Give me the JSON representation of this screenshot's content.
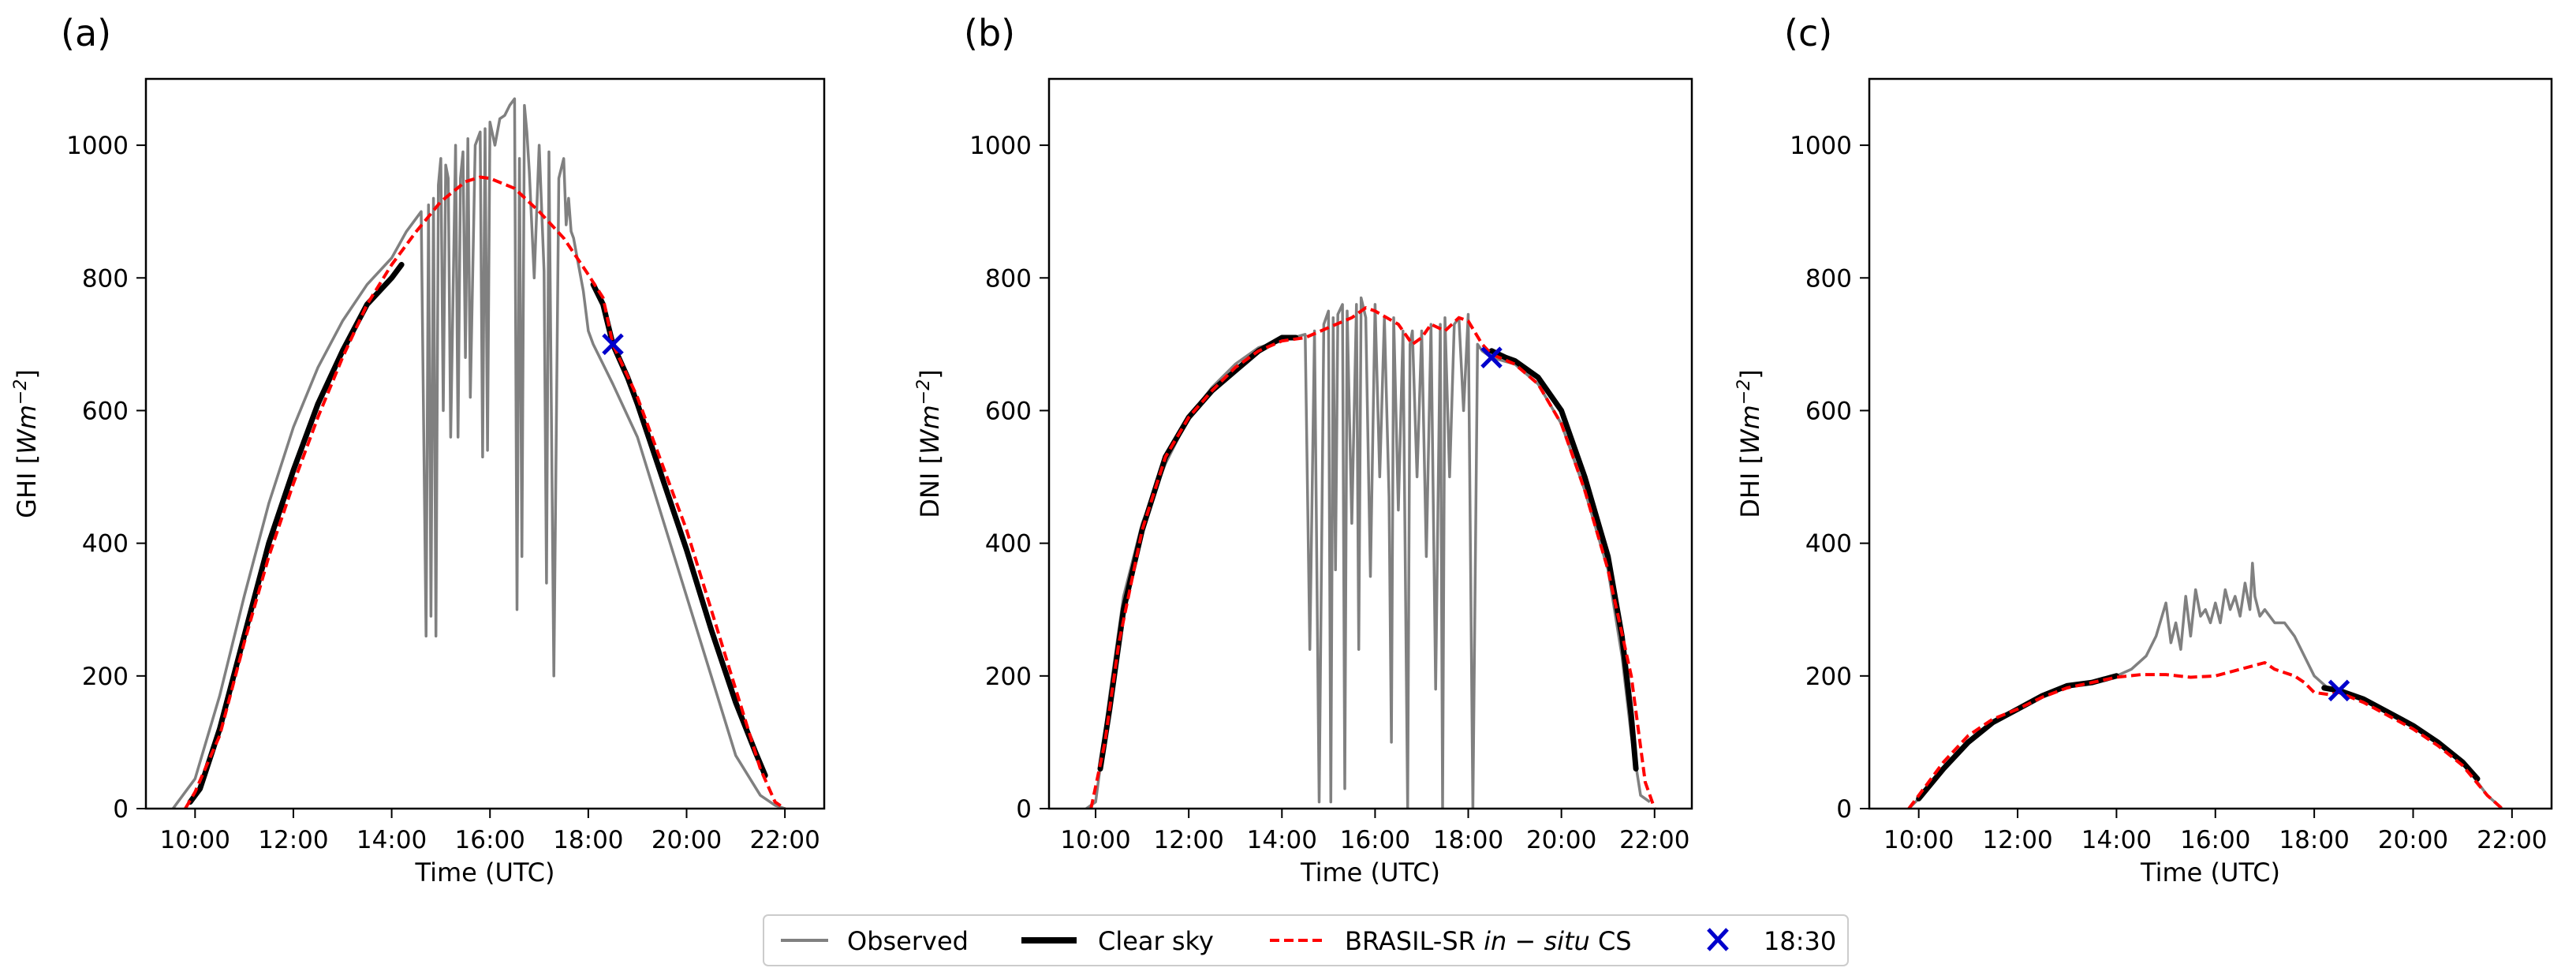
{
  "figure": {
    "legend": {
      "items": [
        {
          "label": "Observed",
          "color": "#808080",
          "style": "line"
        },
        {
          "label": "Clear sky",
          "color": "#000000",
          "style": "thick-line"
        },
        {
          "label_main": "BRASIL-SR ",
          "label_italic": "in − situ",
          "label_tail": " CS",
          "color": "#ff0000",
          "style": "dashed"
        },
        {
          "label": "18:30",
          "color": "#0000cc",
          "style": "marker-x"
        }
      ]
    }
  },
  "chart_data": [
    {
      "panel_label": "(a)",
      "type": "line",
      "ylabel_main": "GHI [",
      "ylabel_unit": "Wm",
      "ylabel_sup": "−2",
      "ylabel_end": "]",
      "xlabel": "Time (UTC)",
      "xlim": [
        9.0,
        22.8
      ],
      "ylim": [
        0,
        1100
      ],
      "xticks": [
        10,
        12,
        14,
        16,
        18,
        20,
        22
      ],
      "xtick_labels": [
        "10:00",
        "12:00",
        "14:00",
        "16:00",
        "18:00",
        "20:00",
        "22:00"
      ],
      "yticks": [
        0,
        200,
        400,
        600,
        800,
        1000
      ],
      "ytick_labels": [
        "0",
        "200",
        "400",
        "600",
        "800",
        "1000"
      ],
      "series": [
        {
          "name": "Observed",
          "color": "#808080",
          "x": [
            9.55,
            10.0,
            10.5,
            11.0,
            11.5,
            12.0,
            12.5,
            13.0,
            13.5,
            14.0,
            14.3,
            14.6,
            14.7,
            14.75,
            14.8,
            14.85,
            14.9,
            14.95,
            15.0,
            15.05,
            15.1,
            15.15,
            15.2,
            15.3,
            15.35,
            15.4,
            15.45,
            15.5,
            15.55,
            15.6,
            15.7,
            15.8,
            15.85,
            15.9,
            15.95,
            16.0,
            16.1,
            16.2,
            16.3,
            16.4,
            16.5,
            16.55,
            16.6,
            16.65,
            16.7,
            16.75,
            16.8,
            16.9,
            17.0,
            17.1,
            17.15,
            17.2,
            17.3,
            17.4,
            17.5,
            17.55,
            17.6,
            17.65,
            17.7,
            17.8,
            17.9,
            18.0,
            18.1,
            18.3,
            18.5,
            19.0,
            19.5,
            20.0,
            20.5,
            21.0,
            21.5,
            21.8,
            22.0
          ],
          "y": [
            0,
            45,
            170,
            320,
            460,
            575,
            665,
            735,
            790,
            830,
            870,
            900,
            260,
            910,
            290,
            920,
            260,
            940,
            980,
            600,
            970,
            950,
            560,
            1000,
            560,
            950,
            990,
            680,
            1010,
            620,
            1000,
            1020,
            530,
            1025,
            540,
            1035,
            1000,
            1040,
            1045,
            1060,
            1070,
            300,
            980,
            380,
            1060,
            1020,
            960,
            800,
            1000,
            810,
            340,
            990,
            200,
            950,
            980,
            880,
            920,
            870,
            860,
            820,
            780,
            720,
            700,
            670,
            640,
            560,
            440,
            320,
            200,
            80,
            20,
            5,
            0
          ]
        },
        {
          "name": "Clear sky",
          "color": "#000000",
          "segments": [
            {
              "x": [
                9.9,
                10.1,
                10.5,
                11.0,
                11.5,
                12.0,
                12.5,
                13.0,
                13.5,
                14.0,
                14.2
              ],
              "y": [
                10,
                30,
                120,
                260,
                400,
                510,
                610,
                690,
                760,
                800,
                820
              ]
            },
            {
              "x": [
                18.1,
                18.3,
                18.5,
                18.8,
                19.0,
                19.5,
                20.0,
                20.5,
                21.0,
                21.4,
                21.6
              ],
              "y": [
                790,
                760,
                700,
                650,
                610,
                500,
                390,
                270,
                160,
                85,
                50
              ]
            }
          ]
        },
        {
          "name": "BRASIL-SR in-situ CS",
          "color": "#ff0000",
          "x": [
            9.8,
            10.0,
            10.5,
            11.0,
            11.5,
            12.0,
            12.5,
            13.0,
            13.5,
            14.0,
            14.5,
            15.0,
            15.5,
            15.8,
            16.0,
            16.5,
            17.0,
            17.5,
            18.0,
            18.3,
            18.5,
            19.0,
            19.5,
            20.0,
            20.5,
            21.0,
            21.5,
            21.8,
            22.0
          ],
          "y": [
            0,
            25,
            110,
            250,
            380,
            490,
            590,
            680,
            760,
            820,
            870,
            915,
            945,
            952,
            950,
            935,
            900,
            860,
            805,
            770,
            700,
            620,
            520,
            420,
            300,
            180,
            60,
            10,
            0
          ]
        }
      ],
      "marker": {
        "label": "18:30",
        "x": 18.5,
        "y": 700
      }
    },
    {
      "panel_label": "(b)",
      "type": "line",
      "ylabel_main": "DNI [",
      "ylabel_unit": "Wm",
      "ylabel_sup": "−2",
      "ylabel_end": "]",
      "xlabel": "Time (UTC)",
      "xlim": [
        9.0,
        22.8
      ],
      "ylim": [
        0,
        1100
      ],
      "xticks": [
        10,
        12,
        14,
        16,
        18,
        20,
        22
      ],
      "xtick_labels": [
        "10:00",
        "12:00",
        "14:00",
        "16:00",
        "18:00",
        "20:00",
        "22:00"
      ],
      "yticks": [
        0,
        200,
        400,
        600,
        800,
        1000
      ],
      "ytick_labels": [
        "0",
        "200",
        "400",
        "600",
        "800",
        "1000"
      ],
      "series": [
        {
          "name": "Observed",
          "color": "#808080",
          "x": [
            9.8,
            10.0,
            10.3,
            10.6,
            11.0,
            11.5,
            12.0,
            12.5,
            13.0,
            13.5,
            14.0,
            14.5,
            14.6,
            14.7,
            14.8,
            14.9,
            15.0,
            15.05,
            15.1,
            15.15,
            15.2,
            15.3,
            15.35,
            15.4,
            15.5,
            15.6,
            15.65,
            15.7,
            15.8,
            15.9,
            16.0,
            16.1,
            16.2,
            16.3,
            16.35,
            16.4,
            16.5,
            16.6,
            16.7,
            16.75,
            16.8,
            16.9,
            17.0,
            17.1,
            17.2,
            17.3,
            17.4,
            17.45,
            17.5,
            17.6,
            17.7,
            17.8,
            17.9,
            18.0,
            18.1,
            18.2,
            18.3,
            18.5,
            19.0,
            19.5,
            20.0,
            20.5,
            21.0,
            21.3,
            21.5,
            21.7,
            21.9
          ],
          "y": [
            0,
            10,
            170,
            320,
            430,
            520,
            590,
            635,
            670,
            695,
            705,
            715,
            240,
            720,
            10,
            730,
            750,
            10,
            740,
            360,
            745,
            760,
            30,
            750,
            430,
            760,
            240,
            770,
            740,
            350,
            760,
            500,
            740,
            470,
            100,
            740,
            450,
            720,
            0,
            700,
            720,
            500,
            720,
            380,
            730,
            180,
            730,
            0,
            740,
            500,
            730,
            740,
            600,
            745,
            0,
            700,
            690,
            680,
            670,
            640,
            580,
            480,
            360,
            230,
            110,
            20,
            10
          ]
        },
        {
          "name": "Clear sky",
          "color": "#000000",
          "segments": [
            {
              "x": [
                10.1,
                10.3,
                10.6,
                11.0,
                11.5,
                12.0,
                12.5,
                13.0,
                13.5,
                14.0,
                14.3
              ],
              "y": [
                60,
                150,
                300,
                420,
                530,
                590,
                630,
                660,
                690,
                710,
                710
              ]
            },
            {
              "x": [
                18.5,
                18.8,
                19.0,
                19.5,
                20.0,
                20.5,
                21.0,
                21.3,
                21.5,
                21.6
              ],
              "y": [
                690,
                680,
                675,
                650,
                600,
                500,
                380,
                260,
                140,
                60
              ]
            }
          ]
        },
        {
          "name": "BRASIL-SR in-situ CS",
          "color": "#ff0000",
          "x": [
            9.9,
            10.2,
            10.5,
            11.0,
            11.5,
            12.0,
            12.5,
            13.0,
            13.5,
            14.0,
            14.5,
            15.0,
            15.5,
            15.8,
            16.0,
            16.5,
            16.8,
            17.0,
            17.2,
            17.5,
            17.8,
            18.0,
            18.3,
            18.5,
            19.0,
            19.5,
            20.0,
            20.5,
            21.0,
            21.5,
            21.8,
            22.0
          ],
          "y": [
            0,
            100,
            250,
            420,
            530,
            590,
            630,
            665,
            690,
            705,
            710,
            725,
            740,
            755,
            750,
            730,
            700,
            710,
            730,
            720,
            740,
            735,
            700,
            685,
            670,
            640,
            580,
            480,
            360,
            200,
            40,
            0
          ]
        }
      ],
      "marker": {
        "label": "18:30",
        "x": 18.5,
        "y": 680
      }
    },
    {
      "panel_label": "(c)",
      "type": "line",
      "ylabel_main": "DHI [",
      "ylabel_unit": "Wm",
      "ylabel_sup": "−2",
      "ylabel_end": "]",
      "xlabel": "Time (UTC)",
      "xlim": [
        9.0,
        22.8
      ],
      "ylim": [
        0,
        1100
      ],
      "xticks": [
        10,
        12,
        14,
        16,
        18,
        20,
        22
      ],
      "xtick_labels": [
        "10:00",
        "12:00",
        "14:00",
        "16:00",
        "18:00",
        "20:00",
        "22:00"
      ],
      "yticks": [
        0,
        200,
        400,
        600,
        800,
        1000
      ],
      "ytick_labels": [
        "0",
        "200",
        "400",
        "600",
        "800",
        "1000"
      ],
      "series": [
        {
          "name": "Observed",
          "color": "#808080",
          "x": [
            9.8,
            10.0,
            10.5,
            11.0,
            11.5,
            12.0,
            12.5,
            13.0,
            13.5,
            14.0,
            14.3,
            14.6,
            14.8,
            15.0,
            15.1,
            15.2,
            15.3,
            15.4,
            15.5,
            15.6,
            15.7,
            15.8,
            15.9,
            16.0,
            16.1,
            16.2,
            16.3,
            16.4,
            16.5,
            16.6,
            16.7,
            16.75,
            16.8,
            16.9,
            17.0,
            17.2,
            17.4,
            17.6,
            17.8,
            18.0,
            18.3,
            18.5,
            19.0,
            19.5,
            20.0,
            20.5,
            21.0,
            21.5,
            21.8
          ],
          "y": [
            0,
            15,
            60,
            100,
            130,
            150,
            170,
            185,
            190,
            200,
            210,
            230,
            260,
            310,
            250,
            280,
            240,
            320,
            260,
            330,
            290,
            300,
            280,
            310,
            280,
            330,
            300,
            320,
            290,
            340,
            300,
            370,
            320,
            290,
            300,
            280,
            280,
            260,
            230,
            200,
            180,
            175,
            165,
            145,
            125,
            100,
            70,
            20,
            0
          ]
        },
        {
          "name": "Clear sky",
          "color": "#000000",
          "segments": [
            {
              "x": [
                10.0,
                10.5,
                11.0,
                11.5,
                12.0,
                12.5,
                13.0,
                13.5,
                14.0
              ],
              "y": [
                15,
                60,
                100,
                130,
                150,
                170,
                185,
                190,
                200
              ]
            },
            {
              "x": [
                18.2,
                18.5,
                19.0,
                19.5,
                20.0,
                20.5,
                21.0,
                21.3
              ],
              "y": [
                182,
                178,
                165,
                145,
                125,
                100,
                70,
                45
              ]
            }
          ]
        },
        {
          "name": "BRASIL-SR in-situ CS",
          "color": "#ff0000",
          "x": [
            9.8,
            10.0,
            10.5,
            11.0,
            11.5,
            12.0,
            12.5,
            13.0,
            13.5,
            14.0,
            14.5,
            15.0,
            15.5,
            16.0,
            16.5,
            17.0,
            17.2,
            17.4,
            17.6,
            17.8,
            18.0,
            18.3,
            18.5,
            19.0,
            19.5,
            20.0,
            20.5,
            21.0,
            21.5,
            21.8
          ],
          "y": [
            0,
            20,
            70,
            110,
            135,
            150,
            168,
            182,
            190,
            198,
            202,
            202,
            198,
            200,
            210,
            220,
            210,
            205,
            200,
            190,
            175,
            172,
            175,
            160,
            140,
            120,
            95,
            65,
            20,
            0
          ]
        }
      ],
      "marker": {
        "label": "18:30",
        "x": 18.5,
        "y": 178
      }
    }
  ]
}
